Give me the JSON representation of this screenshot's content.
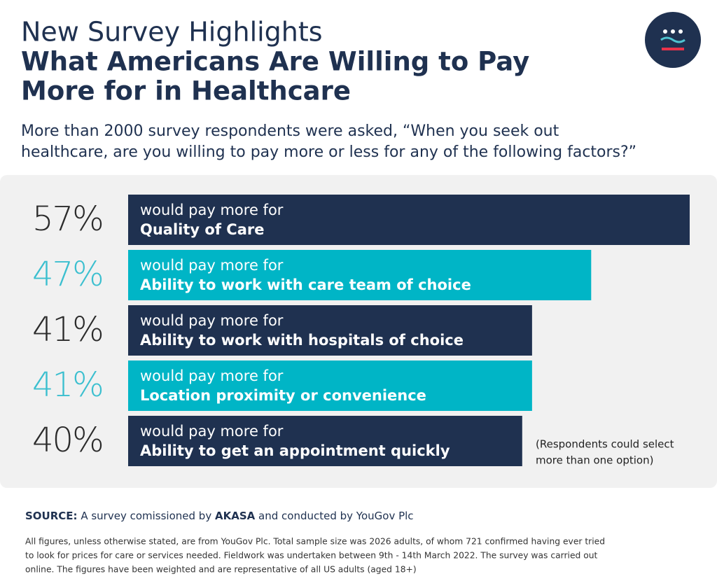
{
  "header": {
    "title_regular": "New Survey Highlights",
    "title_bold": [
      "What Americans Are Willing to Pay",
      "More for in Healthcare"
    ],
    "subtitle": [
      "More than 2000 survey respondents were asked, “When you seek out",
      "healthcare, are you willing to pay more or less for any of the following factors?”"
    ]
  },
  "chart_data": {
    "type": "bar",
    "orientation": "horizontal",
    "bar_prefix": "would pay more for",
    "categories": [
      "Quality of Care",
      "Ability to work with care team of choice",
      "Ability to work with hospitals of choice",
      "Location proximity or convenience",
      "Ability to get an appointment quickly"
    ],
    "values": [
      57,
      47,
      41,
      41,
      40
    ],
    "value_labels": [
      "57%",
      "47%",
      "41%",
      "41%",
      "40%"
    ],
    "colors": [
      "#1f3150",
      "#00b5c6",
      "#1f3150",
      "#00b5c6",
      "#1f3150"
    ],
    "note": [
      "(Respondents could select",
      "more than one option)"
    ]
  },
  "footer": {
    "source_label": "SOURCE:",
    "source_parts": [
      "A survey comissioned by",
      "AKASA",
      "and conducted by YouGov Plc"
    ],
    "fine_print": [
      "All figures, unless otherwise stated, are from YouGov Plc. Total sample size was 2026 adults, of whom 721 confirmed having ever tried",
      "to look for prices for care or services needed. Fieldwork was undertaken between 9th - 14th March 2022.  The survey was carried out",
      "online. The figures have been weighted and are representative of all US adults (aged 18+)"
    ]
  }
}
